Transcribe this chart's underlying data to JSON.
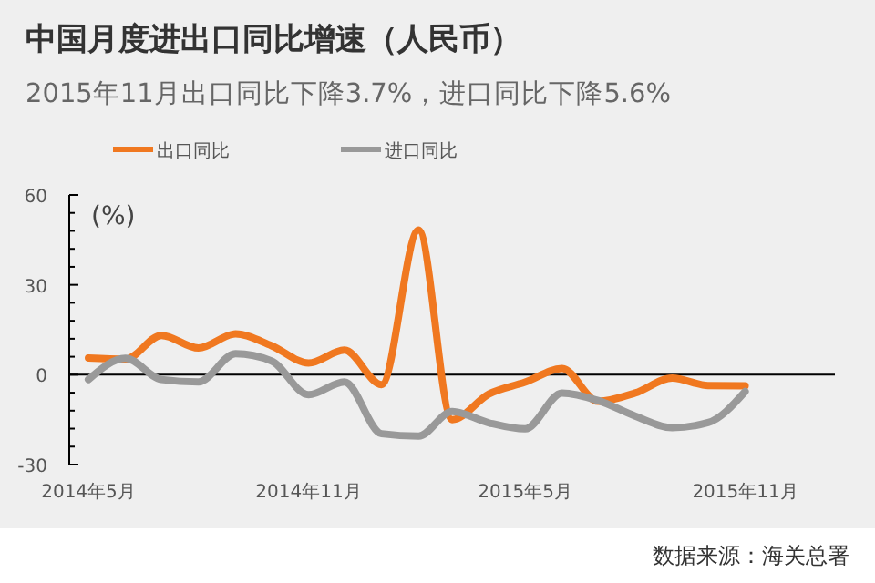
{
  "chart_data": {
    "type": "line",
    "title": "中国月度进出口同比增速（人民币）",
    "subtitle": "2015年11月出口同比下降3.7%，进口同比下降5.6%",
    "ylabel": "(%)",
    "x": [
      "2014-05",
      "2014-06",
      "2014-07",
      "2014-08",
      "2014-09",
      "2014-10",
      "2014-11",
      "2014-12",
      "2015-01",
      "2015-02",
      "2015-03",
      "2015-04",
      "2015-05",
      "2015-06",
      "2015-07",
      "2015-08",
      "2015-09",
      "2015-10",
      "2015-11"
    ],
    "series": [
      {
        "name": "出口同比",
        "color": "#f07820",
        "values": [
          5.6,
          5.2,
          13.1,
          8.9,
          13.6,
          9.7,
          3.9,
          8.2,
          -3.3,
          48.3,
          -15,
          -6.4,
          -2.5,
          2.1,
          -8.9,
          -6.1,
          -1.1,
          -3.6,
          -3.7
        ]
      },
      {
        "name": "进口同比",
        "color": "#999999",
        "values": [
          -1.6,
          5.5,
          -1.6,
          -2.4,
          7.0,
          4.6,
          -6.7,
          -2.4,
          -19.7,
          -20.5,
          -12.3,
          -16.1,
          -18.1,
          -6.1,
          -8.6,
          -13.8,
          -17.7,
          -16.0,
          -5.6
        ]
      }
    ],
    "xlim": [
      "2014-04-15",
      "2016-01-15"
    ],
    "xticks": [
      {
        "value": "2014-05",
        "label": "2014年5月"
      },
      {
        "value": "2014-11",
        "label": "2014年11月"
      },
      {
        "value": "2015-05",
        "label": "2015年5月"
      },
      {
        "value": "2015-11",
        "label": "2015年11月"
      }
    ],
    "ylim": [
      -30,
      60
    ],
    "yticks": [
      -30,
      {
        "value": -24,
        "label": null
      },
      {
        "value": -18,
        "label": null
      },
      {
        "value": -12,
        "label": null
      },
      {
        "value": -6,
        "label": null
      },
      0,
      {
        "value": 6,
        "label": null
      },
      {
        "value": 12,
        "label": null
      },
      {
        "value": 18,
        "label": null
      },
      {
        "value": 24,
        "label": null
      },
      30,
      {
        "value": 36,
        "label": null
      },
      {
        "value": 42,
        "label": null
      },
      {
        "value": 48,
        "label": null
      },
      {
        "value": 54,
        "label": null
      },
      60
    ],
    "ref_lines": [
      {
        "axis": "y",
        "value": 0,
        "color": "#000000"
      }
    ],
    "grid": false,
    "legend": "top left",
    "marker": "none",
    "line_style": "solid",
    "annotations": [
      "数据来源：海关总署"
    ]
  }
}
